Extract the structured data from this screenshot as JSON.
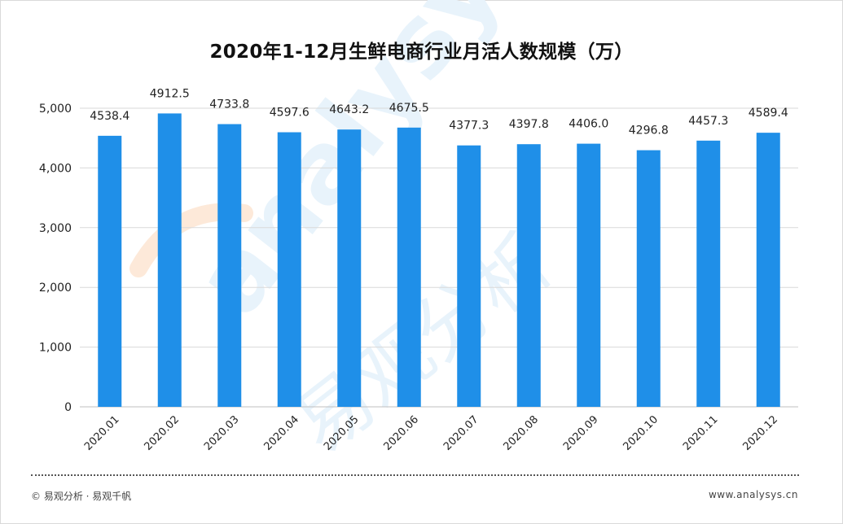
{
  "title": "2020年1-12月生鲜电商行业月活人数规模（万）",
  "footer": {
    "source": "© 易观分析 · 易观千帆",
    "url": "www.analysys.cn"
  },
  "watermark": {
    "latin": "analysys",
    "cn": "易观分析"
  },
  "colors": {
    "bar": "#1f8fe8",
    "grid": "#d9d9d9",
    "axis": "#bfbfbf",
    "watermark": "#e8f3fb",
    "watermark_accent": "#fde9d9"
  },
  "chart_data": {
    "type": "bar",
    "title": "2020年1-12月生鲜电商行业月活人数规模（万）",
    "categories": [
      "2020.01",
      "2020.02",
      "2020.03",
      "2020.04",
      "2020.05",
      "2020.06",
      "2020.07",
      "2020.08",
      "2020.09",
      "2020.10",
      "2020.11",
      "2020.12"
    ],
    "values": [
      4538.4,
      4912.5,
      4733.8,
      4597.6,
      4643.2,
      4675.5,
      4377.3,
      4397.8,
      4406.0,
      4296.8,
      4457.3,
      4589.4
    ],
    "value_labels": [
      "4538.4",
      "4912.5",
      "4733.8",
      "4597.6",
      "4643.2",
      "4675.5",
      "4377.3",
      "4397.8",
      "4406.0",
      "4296.8",
      "4457.3",
      "4589.4"
    ],
    "y_ticks": [
      0,
      1000,
      2000,
      3000,
      4000,
      5000
    ],
    "y_tick_labels": [
      "0",
      "1,000",
      "2,000",
      "3,000",
      "4,000",
      "5,000"
    ],
    "ylim": [
      0,
      5000
    ],
    "xlabel": "",
    "ylabel": "",
    "grid": true,
    "legend": "none"
  }
}
